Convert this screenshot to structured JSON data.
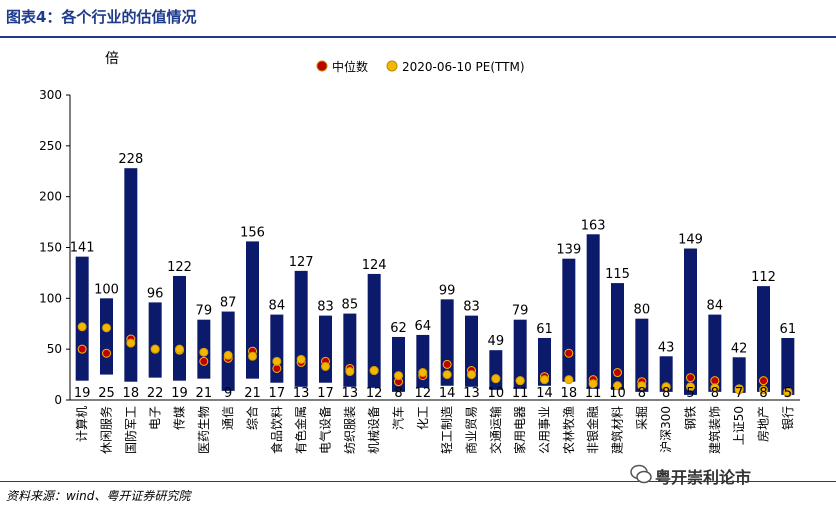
{
  "header": {
    "title": "图表4：各个行业的估值情况"
  },
  "footer": {
    "source": "资料来源：wind、粤开证券研究院",
    "watermark": "粤开崇利论市"
  },
  "chart_data": {
    "type": "bar",
    "ylabel": "倍",
    "ylim": [
      0,
      300
    ],
    "yticks": [
      0,
      50,
      100,
      150,
      200,
      250,
      300
    ],
    "legend_position": "top-center",
    "legend": [
      {
        "name": "中位数",
        "color": "#c00000"
      },
      {
        "name": "2020-06-10 PE(TTM)",
        "color": "#f5b800"
      }
    ],
    "bar_color": "#0c1a6b",
    "categories": [
      "计算机",
      "休闲服务",
      "国防军工",
      "电子",
      "传媒",
      "医药生物",
      "通信",
      "综合",
      "食品饮料",
      "有色金属",
      "电气设备",
      "纺织服装",
      "机械设备",
      "汽车",
      "化工",
      "轻工制造",
      "商业贸易",
      "交通运输",
      "家用电器",
      "公用事业",
      "农林牧渔",
      "非银金融",
      "建筑材料",
      "采掘",
      "沪深300",
      "钢铁",
      "建筑装饰",
      "上证50",
      "房地产",
      "银行"
    ],
    "high": [
      141,
      100,
      228,
      96,
      122,
      79,
      87,
      156,
      84,
      127,
      83,
      85,
      124,
      62,
      64,
      99,
      83,
      49,
      79,
      61,
      139,
      163,
      115,
      80,
      43,
      149,
      84,
      42,
      112,
      61
    ],
    "low": [
      19,
      25,
      18,
      22,
      19,
      21,
      9,
      21,
      17,
      13,
      17,
      13,
      12,
      8,
      12,
      14,
      13,
      10,
      11,
      14,
      18,
      11,
      10,
      8,
      8,
      5,
      8,
      7,
      8,
      5
    ],
    "median": [
      50,
      46,
      60,
      50,
      49,
      38,
      41,
      48,
      31,
      37,
      38,
      31,
      29,
      18,
      24,
      35,
      29,
      21,
      19,
      23,
      46,
      20,
      27,
      18,
      13,
      22,
      19,
      11,
      19,
      7
    ],
    "current_pe": [
      72,
      71,
      56,
      50,
      50,
      47,
      44,
      43,
      38,
      40,
      33,
      28,
      29,
      24,
      27,
      25,
      25,
      21,
      19,
      20,
      20,
      16,
      14,
      14,
      13,
      13,
      12,
      10,
      10,
      8
    ]
  }
}
